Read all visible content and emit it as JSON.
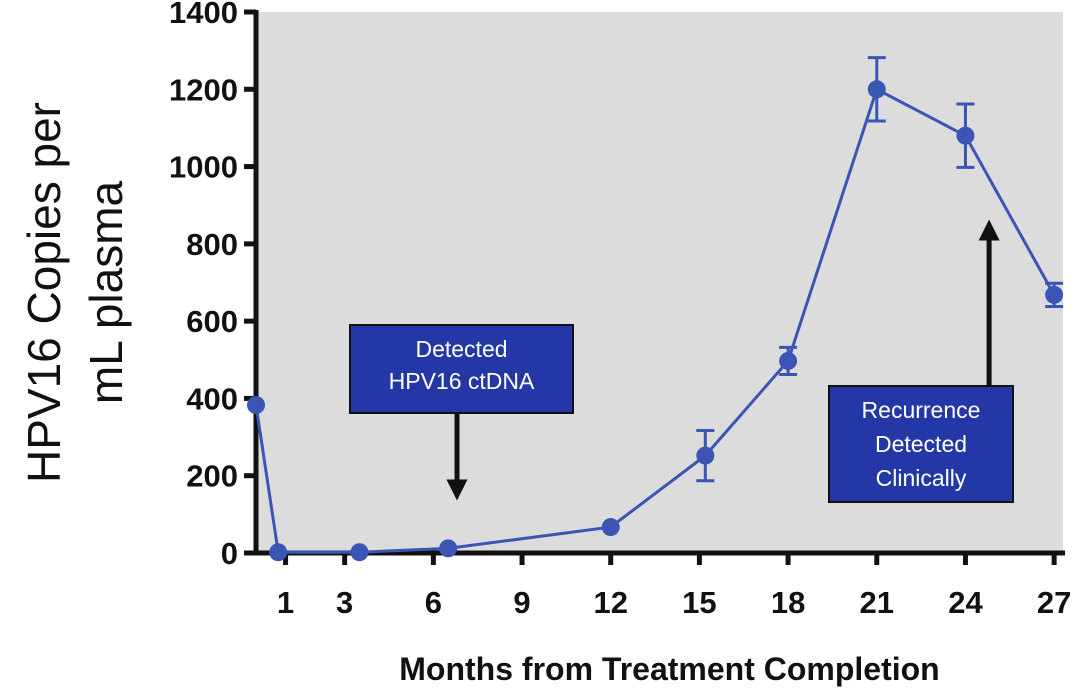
{
  "chart_data": {
    "type": "line",
    "title": "",
    "xlabel": "Months from Treatment Completion",
    "ylabel_lines": [
      "HPV16 Copies per",
      "mL plasma"
    ],
    "xlim": [
      0,
      27.3
    ],
    "ylim": [
      0,
      1400
    ],
    "x_ticks": [
      1,
      3,
      6,
      9,
      12,
      15,
      18,
      21,
      24,
      27
    ],
    "x_tick_labels": [
      "1",
      "3",
      "6",
      "9",
      "12",
      "15",
      "18",
      "21",
      "24",
      "27"
    ],
    "y_ticks": [
      0,
      200,
      400,
      600,
      800,
      1000,
      1200,
      1400
    ],
    "y_tick_labels": [
      "0",
      "200",
      "400",
      "600",
      "800",
      "1000",
      "1200",
      "1400"
    ],
    "grid": false,
    "colors": {
      "series": "#3a55b4",
      "plot_background": "#dcdcdc",
      "annotation_box": "#2338a6",
      "arrow": "#111111"
    },
    "series": [
      {
        "x": [
          0,
          0.75,
          3.5,
          6.5,
          12,
          15.2,
          18,
          21,
          24,
          27
        ],
        "y": [
          383,
          2,
          2,
          12,
          67,
          252,
          497,
          1200,
          1080,
          668
        ],
        "error": [
          0,
          0,
          0,
          0,
          0,
          65,
          35,
          82,
          82,
          30
        ]
      }
    ],
    "annotations": [
      {
        "lines": [
          "Detected",
          "HPV16 ctDNA"
        ],
        "arrow_direction": "down",
        "x": 6.8
      },
      {
        "lines": [
          "Recurrence",
          "Detected",
          "Clinically"
        ],
        "arrow_direction": "up",
        "x": 24.8
      }
    ]
  }
}
